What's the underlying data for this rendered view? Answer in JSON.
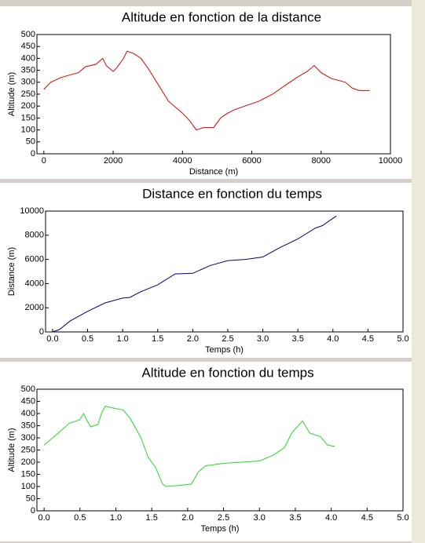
{
  "chart_data": [
    {
      "type": "line",
      "title": "Altitude en fonction de la distance",
      "xlabel": "Distance (m)",
      "ylabel": "Altitude (m)",
      "color": "#dd0000",
      "x": [
        0,
        200,
        500,
        1000,
        1200,
        1500,
        1700,
        1800,
        2000,
        2100,
        2300,
        2400,
        2600,
        2800,
        3000,
        3300,
        3600,
        4000,
        4200,
        4400,
        4600,
        4900,
        5100,
        5300,
        5500,
        5800,
        6200,
        6600,
        7000,
        7300,
        7600,
        7800,
        8000,
        8300,
        8700,
        8900,
        9100,
        9400
      ],
      "values": [
        270,
        300,
        320,
        340,
        365,
        375,
        400,
        370,
        345,
        360,
        400,
        430,
        420,
        400,
        360,
        290,
        220,
        170,
        140,
        100,
        110,
        110,
        150,
        170,
        185,
        200,
        220,
        250,
        290,
        320,
        345,
        370,
        340,
        315,
        300,
        275,
        265,
        265
      ],
      "xlim": [
        -200,
        10000
      ],
      "xticks": [
        0,
        2000,
        4000,
        6000,
        8000,
        10000
      ],
      "ylim": [
        0,
        500
      ],
      "yticks": [
        0,
        50,
        100,
        150,
        200,
        250,
        300,
        350,
        400,
        450,
        500
      ]
    },
    {
      "type": "line",
      "title": "Distance en fonction du temps",
      "xlabel": "Temps (h)",
      "ylabel": "Distance (m)",
      "color": "#000080",
      "x": [
        0,
        0.1,
        0.25,
        0.5,
        0.75,
        1.0,
        1.1,
        1.25,
        1.5,
        1.75,
        2.0,
        2.25,
        2.5,
        2.75,
        3.0,
        3.25,
        3.5,
        3.75,
        3.85,
        4.05
      ],
      "values": [
        0,
        200,
        900,
        1700,
        2400,
        2800,
        2850,
        3300,
        3900,
        4800,
        4850,
        5500,
        5900,
        6000,
        6200,
        7000,
        7700,
        8600,
        8800,
        9600
      ],
      "xlim": [
        -0.1,
        5.0
      ],
      "xticks": [
        {
          "value": 0,
          "label": "0.0"
        },
        0.5,
        {
          "value": 1,
          "label": "1.0"
        },
        1.5,
        {
          "value": 2,
          "label": "2.0"
        },
        2.5,
        {
          "value": 3,
          "label": "3.0"
        },
        3.5,
        {
          "value": 4,
          "label": "4.0"
        },
        4.5,
        {
          "value": 5,
          "label": "5.0"
        }
      ],
      "ylim": [
        0,
        10000
      ],
      "yticks": [
        0,
        2000,
        4000,
        6000,
        8000,
        10000
      ]
    },
    {
      "type": "line",
      "title": "Altitude en fonction du temps",
      "xlabel": "Temps (h)",
      "ylabel": "Altitude (m)",
      "color": "#22dd22",
      "x": [
        0,
        0.2,
        0.35,
        0.5,
        0.55,
        0.6,
        0.65,
        0.75,
        0.8,
        0.85,
        1.0,
        1.1,
        1.2,
        1.35,
        1.45,
        1.55,
        1.65,
        1.7,
        1.9,
        2.05,
        2.15,
        2.25,
        2.5,
        3.0,
        3.2,
        3.35,
        3.45,
        3.6,
        3.7,
        3.85,
        3.95,
        4.05
      ],
      "values": [
        270,
        320,
        360,
        375,
        400,
        370,
        345,
        355,
        400,
        430,
        420,
        415,
        380,
        300,
        220,
        180,
        110,
        100,
        105,
        110,
        160,
        185,
        195,
        205,
        230,
        260,
        320,
        370,
        320,
        305,
        270,
        265
      ],
      "xlim": [
        -0.1,
        5.0
      ],
      "xticks": [
        {
          "value": 0,
          "label": "0.0"
        },
        0.5,
        {
          "value": 1,
          "label": "1.0"
        },
        1.5,
        {
          "value": 2,
          "label": "2.0"
        },
        2.5,
        {
          "value": 3,
          "label": "3.0"
        },
        3.5,
        {
          "value": 4,
          "label": "4.0"
        },
        4.5,
        {
          "value": 5,
          "label": "5.0"
        }
      ],
      "ylim": [
        0,
        500
      ],
      "yticks": [
        0,
        50,
        100,
        150,
        200,
        250,
        300,
        350,
        400,
        450,
        500
      ]
    }
  ]
}
